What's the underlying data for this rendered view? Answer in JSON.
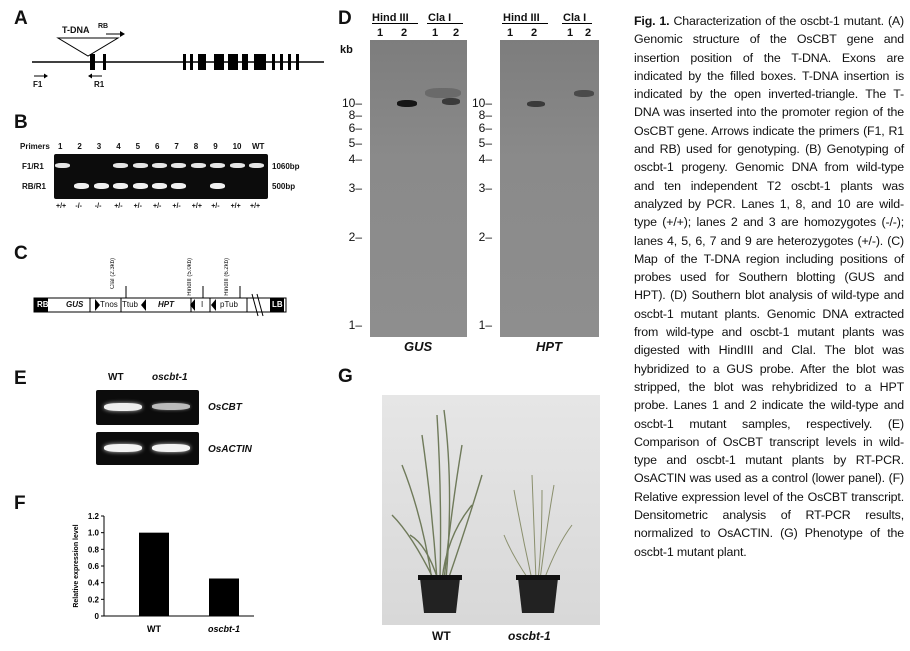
{
  "panels": {
    "A": {
      "label": "A",
      "tdna": "T-DNA",
      "rb": "RB",
      "f1": "F1",
      "r1": "R1"
    },
    "B": {
      "label": "B",
      "primers_label": "Primers",
      "lanes": [
        "1",
        "2",
        "3",
        "4",
        "5",
        "6",
        "7",
        "8",
        "9",
        "10",
        "WT"
      ],
      "row1": "F1/R1",
      "row2": "RB/R1",
      "size1": "1060bp",
      "size2": "500bp",
      "genotypes": [
        "+/+",
        "-/-",
        "-/-",
        "+/-",
        "+/-",
        "+/-",
        "+/-",
        "+/+",
        "+/-",
        "+/+",
        "+/+"
      ]
    },
    "C": {
      "label": "C",
      "rb": "RB",
      "gus": "GUS",
      "tnos": "Tnos",
      "ttub": "Ttub",
      "hpt": "HPT",
      "i": "I",
      "ptub": "pTub",
      "lb": "LB",
      "site1": "ClaI (2.3kb)",
      "site2": "HindIII (5.0kb)",
      "site3": "HindIII (6.2kb)"
    },
    "D": {
      "label": "D",
      "kb": "kb",
      "hind": "Hind III",
      "cla": "Cla I",
      "l1": "1",
      "l2": "2",
      "markers": [
        "10",
        "8",
        "6",
        "5",
        "4",
        "3",
        "2",
        "1"
      ],
      "probe1": "GUS",
      "probe2": "HPT"
    },
    "E": {
      "label": "E",
      "wt": "WT",
      "mut": "oscbt-1",
      "gene1": "OsCBT",
      "gene2": "OsACTIN"
    },
    "F": {
      "label": "F"
    },
    "G": {
      "label": "G",
      "wt": "WT",
      "mut": "oscbt-1"
    }
  },
  "chart_data": {
    "type": "bar",
    "categories": [
      "WT",
      "oscbt-1"
    ],
    "values": [
      1.0,
      0.45
    ],
    "ylabel": "Relative expression level",
    "ylim": [
      0,
      1.2
    ],
    "yticks": [
      "0",
      "0.2",
      "0.4",
      "0.6",
      "0.8",
      "1.0",
      "1.2"
    ]
  },
  "caption": {
    "fig": "Fig. 1.",
    "text": "Characterization of the oscbt-1 mutant. (A) Genomic structure of the OsCBT gene and insertion position of the T-DNA. Exons are indicated by the filled boxes. T-DNA insertion is indicated by the open inverted-triangle. The T-DNA was inserted into the promoter region of the OsCBT gene. Arrows indicate the primers (F1, R1 and RB) used for genotyping. (B) Genotyping of oscbt-1 progeny. Genomic DNA from wild-type and ten independent T2 oscbt-1 plants was analyzed by PCR. Lanes 1, 8, and 10 are wild-type (+/+); lanes 2 and 3 are homozygotes (-/-); lanes 4, 5, 6, 7 and 9 are heterozygotes (+/-). (C) Map of the T-DNA region including positions of probes used for Southern blotting (GUS and HPT). (D) Southern blot analysis of wild-type and oscbt-1 mutant plants. Genomic DNA extracted from wild-type and oscbt-1 mutant plants was digested with HindIII and ClaI. The blot was hybridized to a GUS probe. After the blot was stripped, the blot was rehybridized to a HPT probe. Lanes 1 and 2 indicate the wild-type and oscbt-1 mutant samples, respectively. (E) Comparison of OsCBT transcript levels in wild-type and oscbt-1 mutant plants by RT-PCR. OsACTIN was used as a control (lower panel). (F) Relative expression level of the OsCBT transcript. Densitometric analysis of RT-PCR results, normalized to OsACTIN. (G) Phenotype of the oscbt-1 mutant plant."
  }
}
